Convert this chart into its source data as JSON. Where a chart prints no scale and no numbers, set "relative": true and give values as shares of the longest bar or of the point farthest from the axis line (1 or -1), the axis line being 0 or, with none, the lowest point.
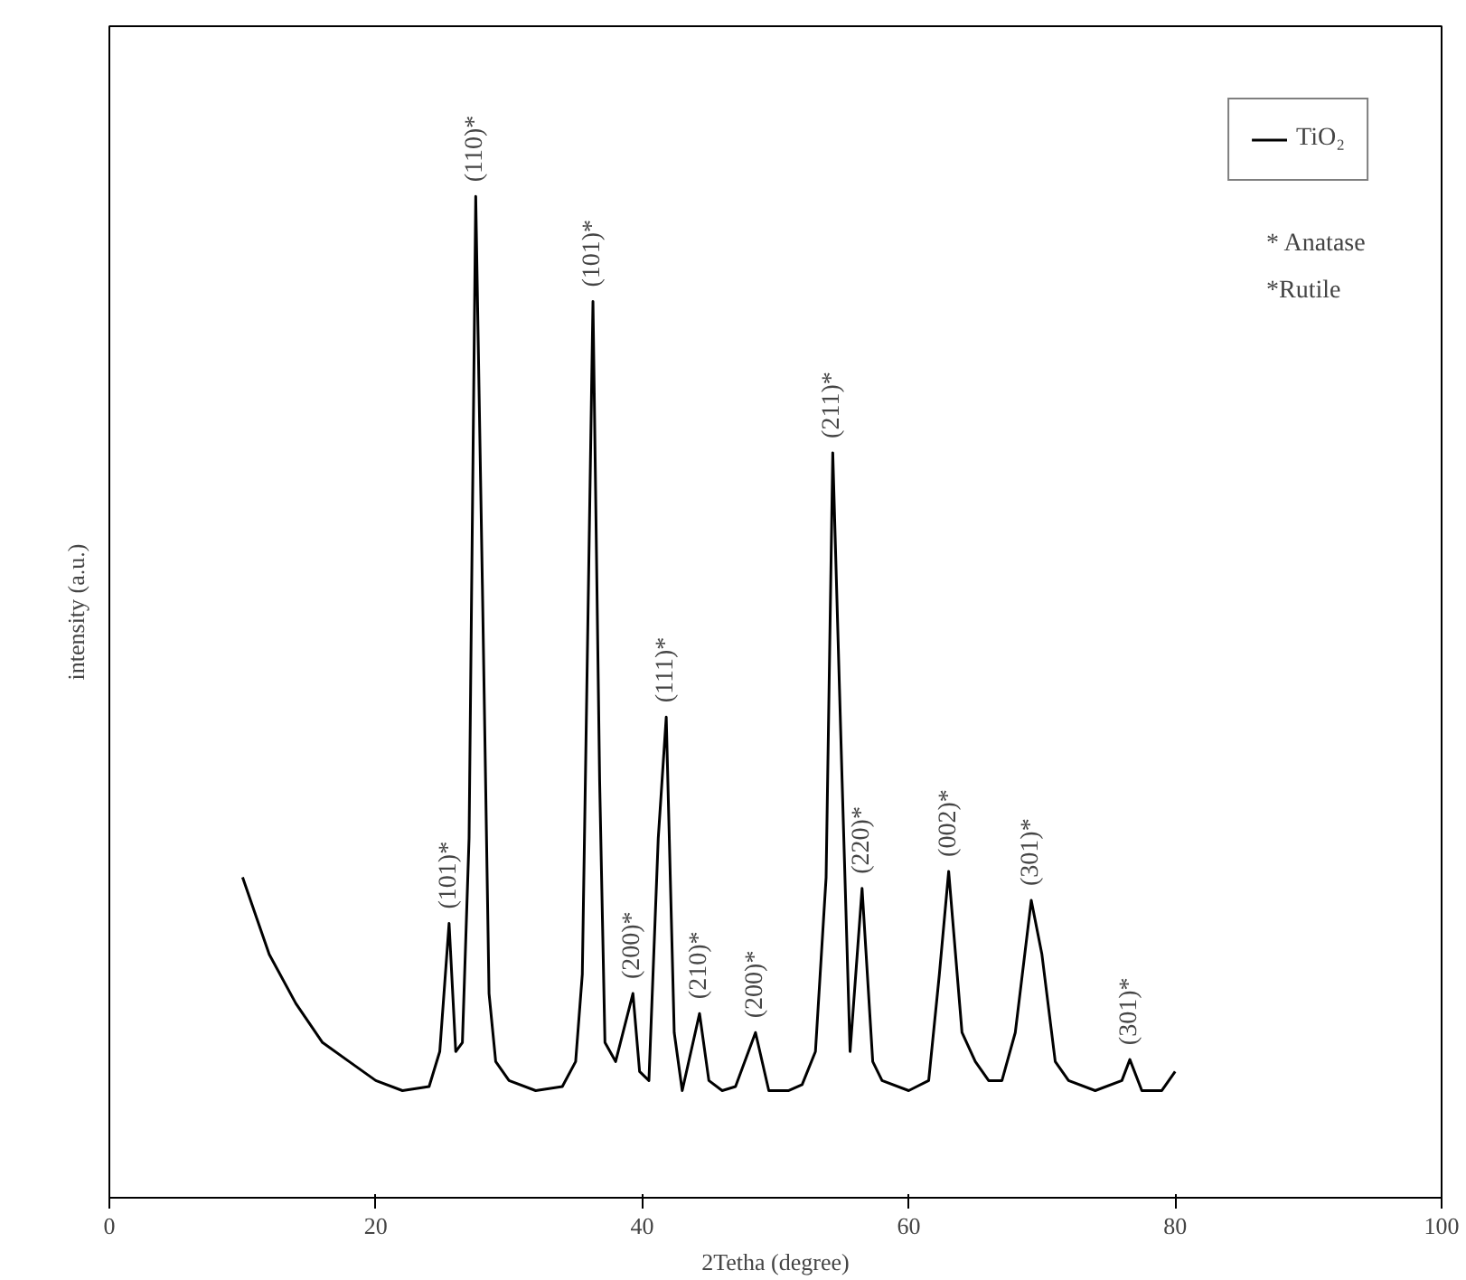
{
  "chart_data": {
    "type": "line",
    "xlabel": "2Tetha (degree)",
    "ylabel": "intensity (a.u.)",
    "relative": true,
    "xlim": [
      0,
      100
    ],
    "xticks": [
      0,
      20,
      40,
      60,
      80,
      100
    ],
    "grid": false,
    "legend": "top right",
    "marker": "none",
    "line_style": "solid",
    "series": [
      {
        "name": "TiO₂",
        "color": "#000000",
        "x": [
          10,
          12,
          14,
          16,
          18,
          20,
          22,
          24,
          24.8,
          25.5,
          26,
          26.5,
          27,
          27.5,
          28,
          28.5,
          29,
          30,
          32,
          34,
          35,
          35.5,
          36.3,
          36.8,
          37.2,
          38,
          39.3,
          39.8,
          40.5,
          41.2,
          41.8,
          42.4,
          43,
          44.3,
          45,
          46,
          47,
          48.5,
          49.5,
          51,
          52,
          53,
          53.8,
          54.3,
          55,
          55.6,
          56.5,
          57.3,
          58,
          60,
          61.5,
          62.3,
          63,
          64,
          65,
          66,
          67,
          68,
          69.2,
          70,
          71,
          72,
          74,
          76,
          76.6,
          77.5,
          79,
          80
        ],
        "values": [
          0.32,
          0.243,
          0.194,
          0.155,
          0.136,
          0.117,
          0.107,
          0.111,
          0.146,
          0.274,
          0.146,
          0.155,
          0.359,
          1.0,
          0.612,
          0.204,
          0.136,
          0.117,
          0.107,
          0.111,
          0.136,
          0.223,
          0.895,
          0.417,
          0.155,
          0.136,
          0.204,
          0.126,
          0.117,
          0.359,
          0.48,
          0.165,
          0.107,
          0.184,
          0.117,
          0.107,
          0.111,
          0.165,
          0.107,
          0.107,
          0.113,
          0.146,
          0.32,
          0.744,
          0.417,
          0.146,
          0.309,
          0.136,
          0.117,
          0.107,
          0.117,
          0.223,
          0.326,
          0.165,
          0.136,
          0.117,
          0.117,
          0.165,
          0.297,
          0.243,
          0.136,
          0.117,
          0.107,
          0.117,
          0.138,
          0.107,
          0.107,
          0.126
        ]
      }
    ],
    "annotations": [
      {
        "text": "(101)*",
        "x": 25.5,
        "y": 0.274
      },
      {
        "text": "(110)*",
        "x": 27.5,
        "y": 1.0
      },
      {
        "text": "(101)*",
        "x": 36.3,
        "y": 0.895
      },
      {
        "text": "(200)*",
        "x": 39.3,
        "y": 0.204
      },
      {
        "text": "(111)*",
        "x": 41.8,
        "y": 0.48
      },
      {
        "text": "(210)*",
        "x": 44.3,
        "y": 0.184
      },
      {
        "text": "(200)*",
        "x": 48.5,
        "y": 0.165
      },
      {
        "text": "(211)*",
        "x": 54.3,
        "y": 0.744
      },
      {
        "text": "(220)*",
        "x": 56.5,
        "y": 0.309
      },
      {
        "text": "(002)*",
        "x": 63,
        "y": 0.326
      },
      {
        "text": "(301)*",
        "x": 69.2,
        "y": 0.297
      },
      {
        "text": "(301)*",
        "x": 76.6,
        "y": 0.138
      },
      "* Anatase",
      "*Rutile"
    ]
  }
}
